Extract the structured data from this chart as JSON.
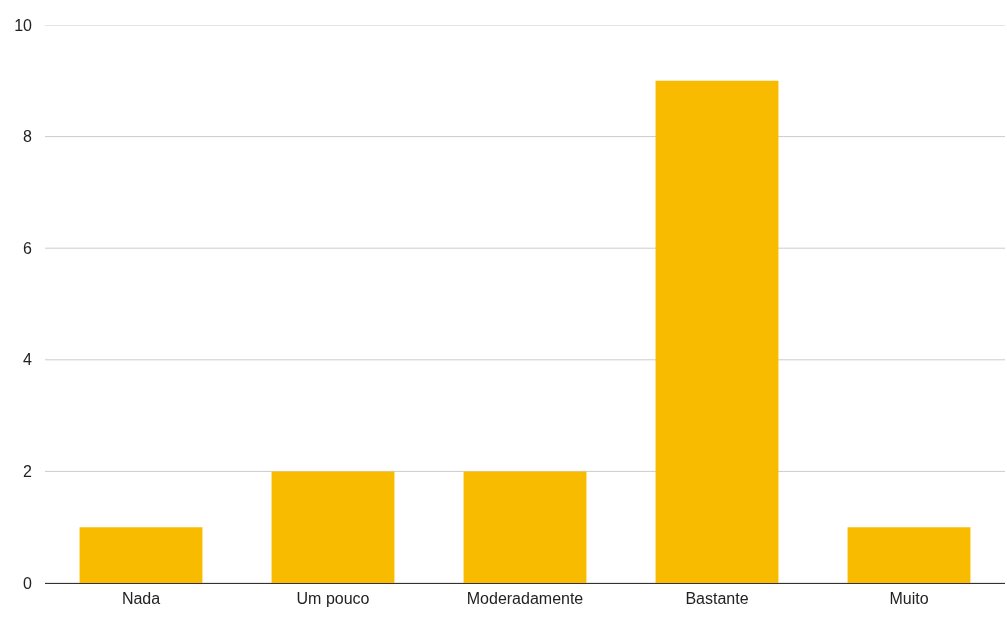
{
  "chart_data": {
    "type": "bar",
    "categories": [
      "Nada",
      "Um pouco",
      "Moderadamente",
      "Bastante",
      "Muito"
    ],
    "values": [
      1,
      2,
      2,
      9,
      1
    ],
    "color": "#f9bb00",
    "ylim": [
      0,
      10
    ],
    "yticks": [
      0,
      2,
      4,
      6,
      8,
      10
    ],
    "grid": "y"
  }
}
